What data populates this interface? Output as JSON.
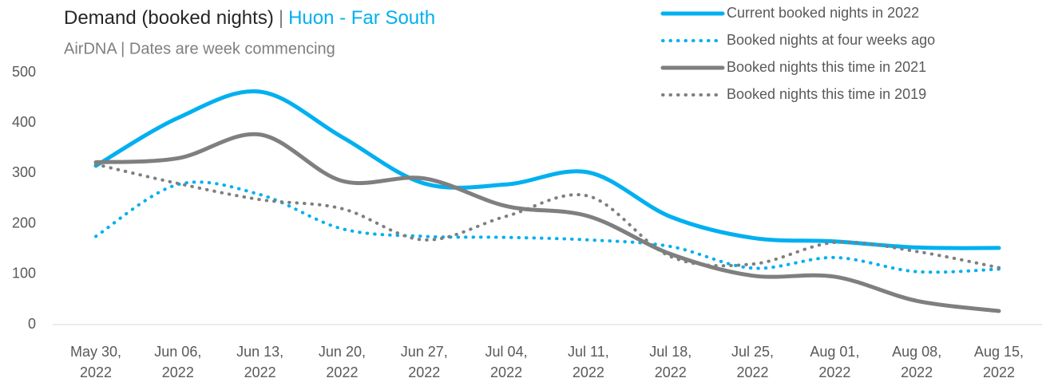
{
  "chart_data": {
    "type": "line",
    "title": "Demand (booked nights)",
    "title_separator": "|",
    "title_highlight": "Huon - Far South",
    "subtitle": "AirDNA | Dates are week commencing",
    "categories": [
      "May 30, 2022",
      "Jun 06, 2022",
      "Jun 13, 2022",
      "Jun 20, 2022",
      "Jun 27, 2022",
      "Jul 04, 2022",
      "Jul 11, 2022",
      "Jul 18, 2022",
      "Jul 25, 2022",
      "Aug 01, 2022",
      "Aug 08, 2022",
      "Aug 15, 2022"
    ],
    "series": [
      {
        "name": "Current booked nights in 2022",
        "color": "#00b0f0",
        "style": "solid",
        "values": [
          315,
          410,
          462,
          372,
          280,
          278,
          302,
          214,
          172,
          165,
          153,
          152
        ]
      },
      {
        "name": "Booked nights at four weeks ago",
        "color": "#00b0f0",
        "style": "dotted",
        "values": [
          175,
          278,
          258,
          190,
          175,
          173,
          168,
          155,
          112,
          133,
          105,
          110
        ]
      },
      {
        "name": "Booked nights this time in 2021",
        "color": "#7f7f7f",
        "style": "solid",
        "values": [
          322,
          330,
          377,
          285,
          290,
          235,
          215,
          140,
          97,
          95,
          47,
          27
        ]
      },
      {
        "name": "Booked nights this time in 2019",
        "color": "#7f7f7f",
        "style": "dotted",
        "values": [
          318,
          280,
          248,
          230,
          168,
          215,
          255,
          135,
          120,
          163,
          145,
          113
        ]
      }
    ],
    "ylim": [
      0,
      500
    ],
    "yticks": [
      0,
      100,
      200,
      300,
      400,
      500
    ],
    "grid": false,
    "legend": "top-right"
  }
}
